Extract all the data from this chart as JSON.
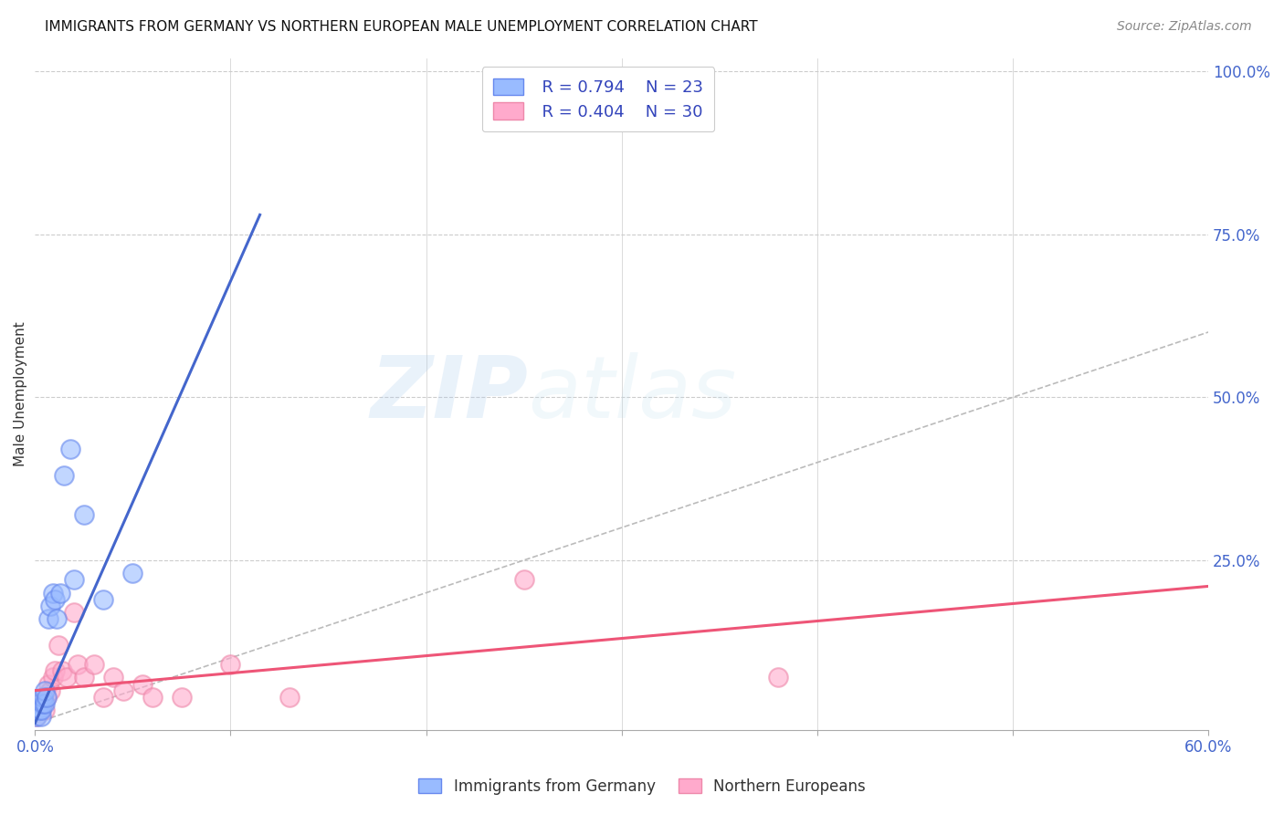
{
  "title": "IMMIGRANTS FROM GERMANY VS NORTHERN EUROPEAN MALE UNEMPLOYMENT CORRELATION CHART",
  "source": "Source: ZipAtlas.com",
  "ylabel": "Male Unemployment",
  "right_ytick_vals": [
    1.0,
    0.75,
    0.5,
    0.25
  ],
  "legend_blue_r": "R = 0.794",
  "legend_blue_n": "N = 23",
  "legend_pink_r": "R = 0.404",
  "legend_pink_n": "N = 30",
  "legend_label_blue": "Immigrants from Germany",
  "legend_label_pink": "Northern Europeans",
  "blue_color": "#99BBFF",
  "blue_edge_color": "#6688EE",
  "pink_color": "#FFAACC",
  "pink_edge_color": "#EE88AA",
  "blue_line_color": "#4466CC",
  "pink_line_color": "#EE5577",
  "diagonal_color": "#BBBBBB",
  "watermark_zip": "ZIP",
  "watermark_atlas": "atlas",
  "background_color": "#FFFFFF",
  "grid_color": "#CCCCCC",
  "xmin": 0.0,
  "xmax": 0.6,
  "ymin": -0.01,
  "ymax": 1.02,
  "blue_scatter_x": [
    0.001,
    0.001,
    0.002,
    0.002,
    0.003,
    0.003,
    0.004,
    0.004,
    0.005,
    0.005,
    0.006,
    0.007,
    0.008,
    0.009,
    0.01,
    0.011,
    0.013,
    0.015,
    0.018,
    0.02,
    0.025,
    0.035,
    0.05
  ],
  "blue_scatter_y": [
    0.01,
    0.02,
    0.02,
    0.03,
    0.01,
    0.02,
    0.03,
    0.04,
    0.03,
    0.05,
    0.04,
    0.16,
    0.18,
    0.2,
    0.19,
    0.16,
    0.2,
    0.38,
    0.42,
    0.22,
    0.32,
    0.19,
    0.23
  ],
  "pink_scatter_x": [
    0.001,
    0.001,
    0.002,
    0.002,
    0.003,
    0.003,
    0.004,
    0.005,
    0.006,
    0.007,
    0.008,
    0.009,
    0.01,
    0.012,
    0.014,
    0.016,
    0.02,
    0.022,
    0.025,
    0.03,
    0.035,
    0.04,
    0.045,
    0.055,
    0.06,
    0.075,
    0.1,
    0.13,
    0.25,
    0.38
  ],
  "pink_scatter_y": [
    0.01,
    0.02,
    0.02,
    0.03,
    0.02,
    0.03,
    0.03,
    0.02,
    0.04,
    0.06,
    0.05,
    0.07,
    0.08,
    0.12,
    0.08,
    0.07,
    0.17,
    0.09,
    0.07,
    0.09,
    0.04,
    0.07,
    0.05,
    0.06,
    0.04,
    0.04,
    0.09,
    0.04,
    0.22,
    0.07
  ],
  "blue_line_x": [
    0.0,
    0.115
  ],
  "blue_line_y": [
    0.0,
    0.78
  ],
  "pink_line_x": [
    0.0,
    0.6
  ],
  "pink_line_y": [
    0.05,
    0.21
  ],
  "diag_line_x": [
    0.0,
    0.6
  ],
  "diag_line_y": [
    0.0,
    0.6
  ],
  "xtick_positions": [
    0.0,
    0.1,
    0.2,
    0.3,
    0.4,
    0.5,
    0.6
  ],
  "xtick_labels": [
    "0.0%",
    "",
    "",
    "",
    "",
    "",
    "60.0%"
  ]
}
